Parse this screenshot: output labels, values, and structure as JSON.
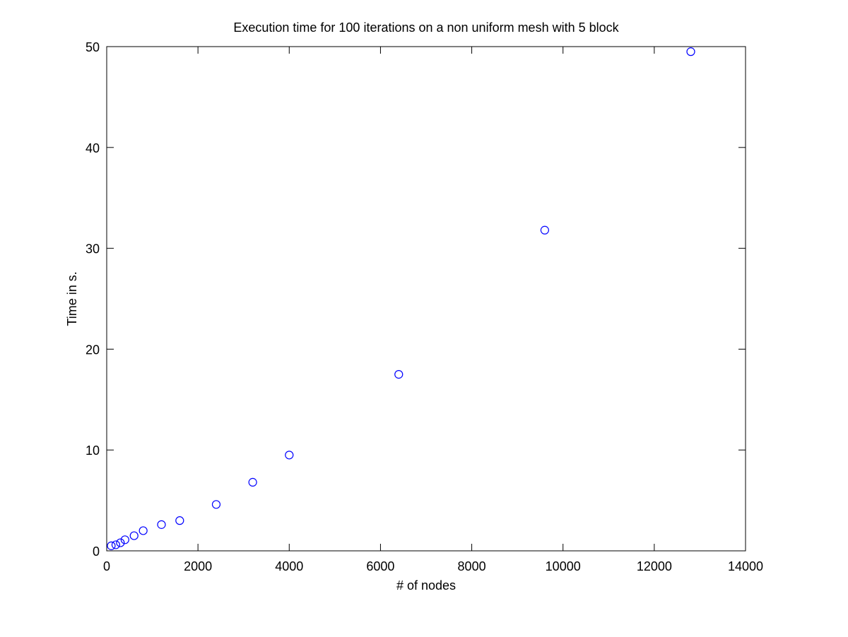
{
  "chart_data": {
    "type": "scatter",
    "title": "Execution time for 100 iterations on a non uniform mesh with 5 block",
    "xlabel": "# of nodes",
    "ylabel": "Time in s.",
    "xlim": [
      0,
      14000
    ],
    "ylim": [
      0,
      50
    ],
    "xticks": [
      0,
      2000,
      4000,
      6000,
      8000,
      10000,
      12000,
      14000
    ],
    "yticks": [
      0,
      10,
      20,
      30,
      40,
      50
    ],
    "grid": false,
    "marker": "circle-open",
    "marker_color": "#0000ff",
    "axis_color": "#000000",
    "series": [
      {
        "x": [
          100,
          200,
          300,
          400,
          600,
          800,
          1200,
          1600,
          2400,
          3200,
          4000,
          6400,
          9600,
          12800
        ],
        "y": [
          0.5,
          0.6,
          0.8,
          1.1,
          1.5,
          2.0,
          2.6,
          3.0,
          4.6,
          6.8,
          9.5,
          17.5,
          31.8,
          49.5
        ]
      }
    ]
  }
}
